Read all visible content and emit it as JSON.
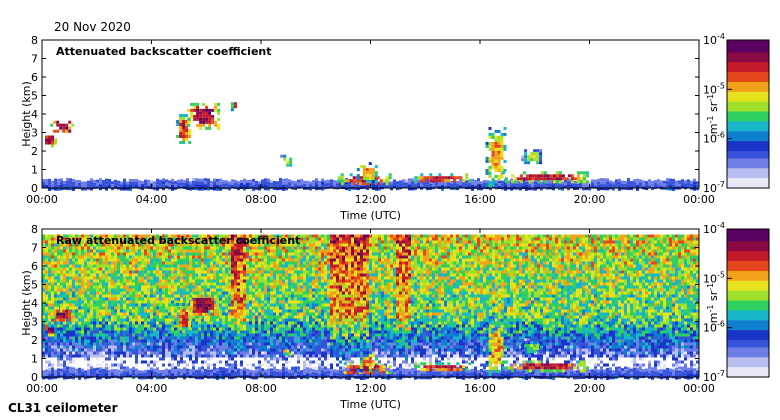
{
  "date": "20 Nov 2020",
  "instrument": "CL31 ceilometer",
  "colors": {
    "sky": "#ffffff",
    "scale": [
      "#e8e8f7",
      "#b8bff0",
      "#6f7fe6",
      "#3652d9",
      "#1a34c8",
      "#0f7fd0",
      "#18b6c8",
      "#2fd060",
      "#9fe02b",
      "#e6e21e",
      "#f2a21a",
      "#e4471c",
      "#c41a2a",
      "#8a0a45",
      "#5a0060"
    ]
  },
  "chart_data": [
    {
      "type": "heatmap",
      "title": "Attenuated backscatter coefficient",
      "xlabel": "Time (UTC)",
      "ylabel": "Height (km)",
      "xlim": [
        0,
        24
      ],
      "ylim": [
        0,
        8
      ],
      "x_ticks": [
        "00:00",
        "04:00",
        "08:00",
        "12:00",
        "16:00",
        "20:00",
        "00:00"
      ],
      "y_ticks": [
        "0",
        "1",
        "2",
        "3",
        "4",
        "5",
        "6",
        "7",
        "8"
      ],
      "colorbar": {
        "label": "m-1 sr-1",
        "label_base1": "m",
        "label_exp1": "-1",
        "label_base2": " sr",
        "label_exp2": "-1",
        "scale": "log",
        "range": [
          1e-07,
          0.0001
        ],
        "ticks": [
          {
            "base": "10",
            "exp": "-4",
            "value": 0.0001
          },
          {
            "base": "10",
            "exp": "-5",
            "value": 1e-05
          },
          {
            "base": "10",
            "exp": "-6",
            "value": 1e-06
          },
          {
            "base": "10",
            "exp": "-7",
            "value": 1e-07
          }
        ]
      },
      "raw_noise": false
    },
    {
      "type": "heatmap",
      "title": "Raw attenuated backscatter coefficient",
      "xlabel": "Time (UTC)",
      "ylabel": "Height (km)",
      "xlim": [
        0,
        24
      ],
      "ylim": [
        0,
        8
      ],
      "x_ticks": [
        "00:00",
        "04:00",
        "08:00",
        "12:00",
        "16:00",
        "20:00",
        "00:00"
      ],
      "y_ticks": [
        "0",
        "1",
        "2",
        "3",
        "4",
        "5",
        "6",
        "7",
        "8"
      ],
      "colorbar": {
        "label": "m-1 sr-1",
        "label_base1": "m",
        "label_exp1": "-1",
        "label_base2": " sr",
        "label_exp2": "-1",
        "scale": "log",
        "range": [
          1e-07,
          0.0001
        ],
        "ticks": [
          {
            "base": "10",
            "exp": "-4",
            "value": 0.0001
          },
          {
            "base": "10",
            "exp": "-5",
            "value": 1e-05
          },
          {
            "base": "10",
            "exp": "-6",
            "value": 1e-06
          },
          {
            "base": "10",
            "exp": "-7",
            "value": 1e-07
          }
        ]
      },
      "raw_noise": true,
      "noise_top_km": 7.7
    }
  ],
  "features": {
    "boundary_layer_top_km": 0.45,
    "clouds": [
      {
        "t0": 0.0,
        "t1": 0.45,
        "h0": 2.3,
        "h1": 3.0,
        "intensity": 0.85
      },
      {
        "t0": 0.3,
        "t1": 1.1,
        "h0": 3.0,
        "h1": 3.8,
        "intensity": 0.9
      },
      {
        "t0": 4.9,
        "t1": 5.4,
        "h0": 2.5,
        "h1": 4.0,
        "intensity": 0.8
      },
      {
        "t0": 5.3,
        "t1": 6.4,
        "h0": 3.3,
        "h1": 4.6,
        "intensity": 0.9
      },
      {
        "t0": 6.9,
        "t1": 7.1,
        "h0": 4.3,
        "h1": 4.8,
        "intensity": 0.8
      },
      {
        "t0": 8.7,
        "t1": 9.1,
        "h0": 1.2,
        "h1": 1.8,
        "intensity": 0.6
      },
      {
        "t0": 10.8,
        "t1": 12.7,
        "h0": 0.2,
        "h1": 0.8,
        "intensity": 0.85
      },
      {
        "t0": 11.5,
        "t1": 12.2,
        "h0": 0.4,
        "h1": 1.4,
        "intensity": 0.7
      },
      {
        "t0": 13.6,
        "t1": 15.6,
        "h0": 0.4,
        "h1": 0.8,
        "intensity": 0.85
      },
      {
        "t0": 16.2,
        "t1": 16.9,
        "h0": 0.1,
        "h1": 3.3,
        "intensity": 0.7
      },
      {
        "t0": 16.8,
        "t1": 19.9,
        "h0": 0.4,
        "h1": 0.9,
        "intensity": 0.85
      },
      {
        "t0": 17.5,
        "t1": 18.2,
        "h0": 1.3,
        "h1": 2.1,
        "intensity": 0.55
      }
    ],
    "raw_plumes": [
      {
        "t0": 6.8,
        "t1": 7.4
      },
      {
        "t0": 10.5,
        "t1": 11.9
      },
      {
        "t0": 12.9,
        "t1": 13.4
      }
    ]
  }
}
